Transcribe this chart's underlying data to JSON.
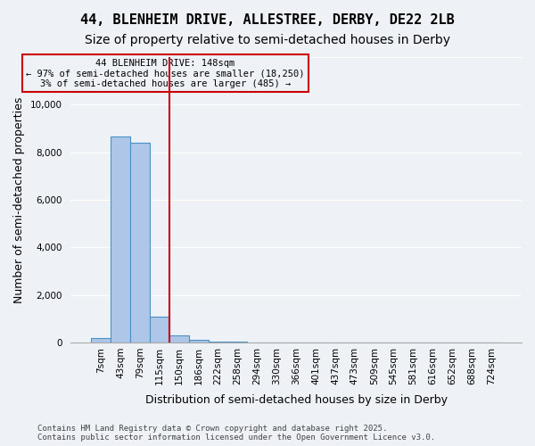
{
  "title": "44, BLENHEIM DRIVE, ALLESTREE, DERBY, DE22 2LB",
  "subtitle": "Size of property relative to semi-detached houses in Derby",
  "xlabel": "Distribution of semi-detached houses by size in Derby",
  "ylabel": "Number of semi-detached properties",
  "bar_values": [
    200,
    8650,
    8400,
    1100,
    300,
    100,
    50,
    20,
    10,
    5,
    3,
    2,
    1,
    1,
    0,
    0,
    0,
    0,
    0,
    0,
    0
  ],
  "bar_labels": [
    "7sqm",
    "43sqm",
    "79sqm",
    "115sqm",
    "150sqm",
    "186sqm",
    "222sqm",
    "258sqm",
    "294sqm",
    "330sqm",
    "366sqm",
    "401sqm",
    "437sqm",
    "473sqm",
    "509sqm",
    "545sqm",
    "581sqm",
    "616sqm",
    "652sqm",
    "688sqm",
    "724sqm"
  ],
  "bar_color": "#aec6e8",
  "bar_edge_color": "#4a90c4",
  "ylim": [
    0,
    12000
  ],
  "yticks": [
    0,
    2000,
    4000,
    6000,
    8000,
    10000,
    12000
  ],
  "property_size_sqm": 148,
  "property_bin_index": 4,
  "red_line_color": "#cc0000",
  "annotation_text": "44 BLENHEIM DRIVE: 148sqm\n← 97% of semi-detached houses are smaller (18,250)\n3% of semi-detached houses are larger (485) →",
  "annotation_box_color": "#cc0000",
  "footer_text": "Contains HM Land Registry data © Crown copyright and database right 2025.\nContains public sector information licensed under the Open Government Licence v3.0.",
  "background_color": "#eef2f7",
  "grid_color": "#ffffff",
  "title_fontsize": 11,
  "subtitle_fontsize": 10,
  "label_fontsize": 9,
  "tick_fontsize": 7.5,
  "footer_fontsize": 6.5
}
